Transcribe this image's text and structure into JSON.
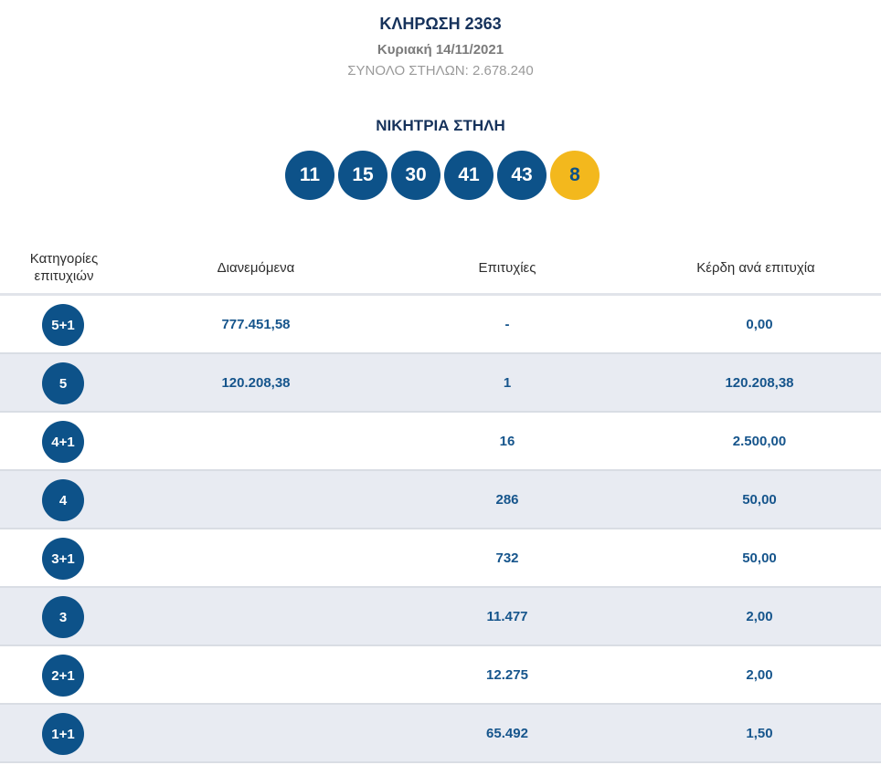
{
  "draw": {
    "title": "ΚΛΗΡΩΣΗ 2363",
    "date": "Κυριακή 14/11/2021",
    "total_columns": "ΣΥΝΟΛΟ ΣΤΗΛΩΝ: 2.678.240"
  },
  "winning": {
    "title": "ΝΙΚΗΤΡΙΑ ΣΤΗΛΗ",
    "numbers": [
      "11",
      "15",
      "30",
      "41",
      "43"
    ],
    "bonus": "8"
  },
  "table": {
    "headers": {
      "category": "Κατηγορίες επιτυχιών",
      "distributed": "Διανεμόμενα",
      "winners": "Επιτυχίες",
      "prize": "Κέρδη ανά επιτυχία"
    },
    "rows": [
      {
        "category": "5+1",
        "distributed": "777.451,58",
        "winners": "-",
        "prize": "0,00"
      },
      {
        "category": "5",
        "distributed": "120.208,38",
        "winners": "1",
        "prize": "120.208,38"
      },
      {
        "category": "4+1",
        "distributed": "",
        "winners": "16",
        "prize": "2.500,00"
      },
      {
        "category": "4",
        "distributed": "",
        "winners": "286",
        "prize": "50,00"
      },
      {
        "category": "3+1",
        "distributed": "",
        "winners": "732",
        "prize": "50,00"
      },
      {
        "category": "3",
        "distributed": "",
        "winners": "11.477",
        "prize": "2,00"
      },
      {
        "category": "2+1",
        "distributed": "",
        "winners": "12.275",
        "prize": "2,00"
      },
      {
        "category": "1+1",
        "distributed": "",
        "winners": "65.492",
        "prize": "1,50"
      }
    ]
  },
  "colors": {
    "ball": "#0d5289",
    "bonus_ball": "#f3b81d",
    "value_text": "#16558c",
    "alt_row": "#e8ebf2"
  }
}
